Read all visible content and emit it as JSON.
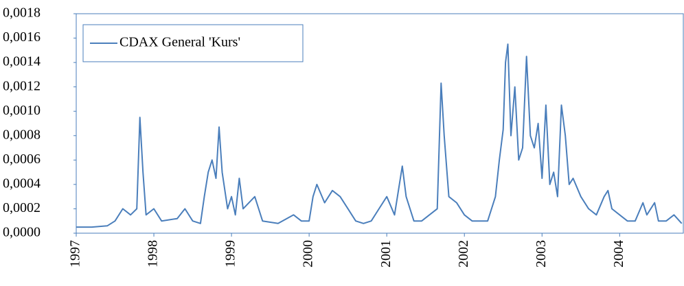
{
  "chart_data": {
    "type": "line",
    "series": [
      {
        "name": "CDAX General 'Kurs'",
        "color": "#4a7ebb",
        "x": [
          1997.0,
          1997.2,
          1997.4,
          1997.5,
          1997.6,
          1997.7,
          1997.78,
          1997.82,
          1997.86,
          1997.9,
          1998.0,
          1998.1,
          1998.3,
          1998.4,
          1998.5,
          1998.6,
          1998.65,
          1998.7,
          1998.75,
          1998.8,
          1998.84,
          1998.88,
          1998.95,
          1999.0,
          1999.05,
          1999.1,
          1999.15,
          1999.3,
          1999.4,
          1999.6,
          1999.8,
          1999.9,
          2000.0,
          2000.05,
          2000.1,
          2000.2,
          2000.3,
          2000.4,
          2000.5,
          2000.6,
          2000.7,
          2000.8,
          2000.9,
          2001.0,
          2001.1,
          2001.2,
          2001.25,
          2001.35,
          2001.45,
          2001.55,
          2001.65,
          2001.7,
          2001.74,
          2001.8,
          2001.9,
          2002.0,
          2002.1,
          2002.2,
          2002.3,
          2002.4,
          2002.45,
          2002.5,
          2002.53,
          2002.56,
          2002.6,
          2002.65,
          2002.7,
          2002.75,
          2002.8,
          2002.85,
          2002.9,
          2002.95,
          2003.0,
          2003.05,
          2003.1,
          2003.15,
          2003.2,
          2003.25,
          2003.3,
          2003.35,
          2003.4,
          2003.5,
          2003.6,
          2003.7,
          2003.8,
          2003.85,
          2003.9,
          2004.0,
          2004.1,
          2004.2,
          2004.3,
          2004.35,
          2004.45,
          2004.5,
          2004.6,
          2004.7,
          2004.8
        ],
        "values": [
          5e-05,
          5e-05,
          6e-05,
          0.0001,
          0.0002,
          0.00015,
          0.0002,
          0.00095,
          0.0005,
          0.00015,
          0.0002,
          0.0001,
          0.00012,
          0.0002,
          0.0001,
          8e-05,
          0.0003,
          0.0005,
          0.0006,
          0.00045,
          0.00087,
          0.0005,
          0.0002,
          0.0003,
          0.00015,
          0.00045,
          0.0002,
          0.0003,
          0.0001,
          8e-05,
          0.00015,
          0.0001,
          0.0001,
          0.0003,
          0.0004,
          0.00025,
          0.00035,
          0.0003,
          0.0002,
          0.0001,
          8e-05,
          0.0001,
          0.0002,
          0.0003,
          0.00015,
          0.00055,
          0.0003,
          0.0001,
          0.0001,
          0.00015,
          0.0002,
          0.00123,
          0.0008,
          0.0003,
          0.00025,
          0.00015,
          0.0001,
          0.0001,
          0.0001,
          0.0003,
          0.0006,
          0.00085,
          0.0014,
          0.00155,
          0.0008,
          0.0012,
          0.0006,
          0.0007,
          0.00145,
          0.0008,
          0.0007,
          0.0009,
          0.00045,
          0.00105,
          0.0004,
          0.0005,
          0.0003,
          0.00105,
          0.0008,
          0.0004,
          0.00045,
          0.0003,
          0.0002,
          0.00015,
          0.0003,
          0.00035,
          0.0002,
          0.00015,
          0.0001,
          0.0001,
          0.00025,
          0.00015,
          0.00025,
          0.0001,
          0.0001,
          0.00015,
          8e-05
        ]
      }
    ],
    "xlim": [
      1997,
      2004.82
    ],
    "xticks": [
      1997,
      1998,
      1999,
      2000,
      2001,
      2002,
      2003,
      2004
    ],
    "ylim": [
      0,
      0.0018
    ],
    "yticks": [
      {
        "value": 0,
        "label": "0,0000"
      },
      {
        "value": 0.0002,
        "label": "0,0002"
      },
      {
        "value": 0.0004,
        "label": "0,0004"
      },
      {
        "value": 0.0006,
        "label": "0,0006"
      },
      {
        "value": 0.0008,
        "label": "0,0008"
      },
      {
        "value": 0.001,
        "label": "0,0010"
      },
      {
        "value": 0.0012,
        "label": "0,0012"
      },
      {
        "value": 0.0014,
        "label": "0,0014"
      },
      {
        "value": 0.0016,
        "label": "0,0016"
      },
      {
        "value": 0.0018,
        "label": "0,0018"
      }
    ],
    "legend": "top-left"
  }
}
